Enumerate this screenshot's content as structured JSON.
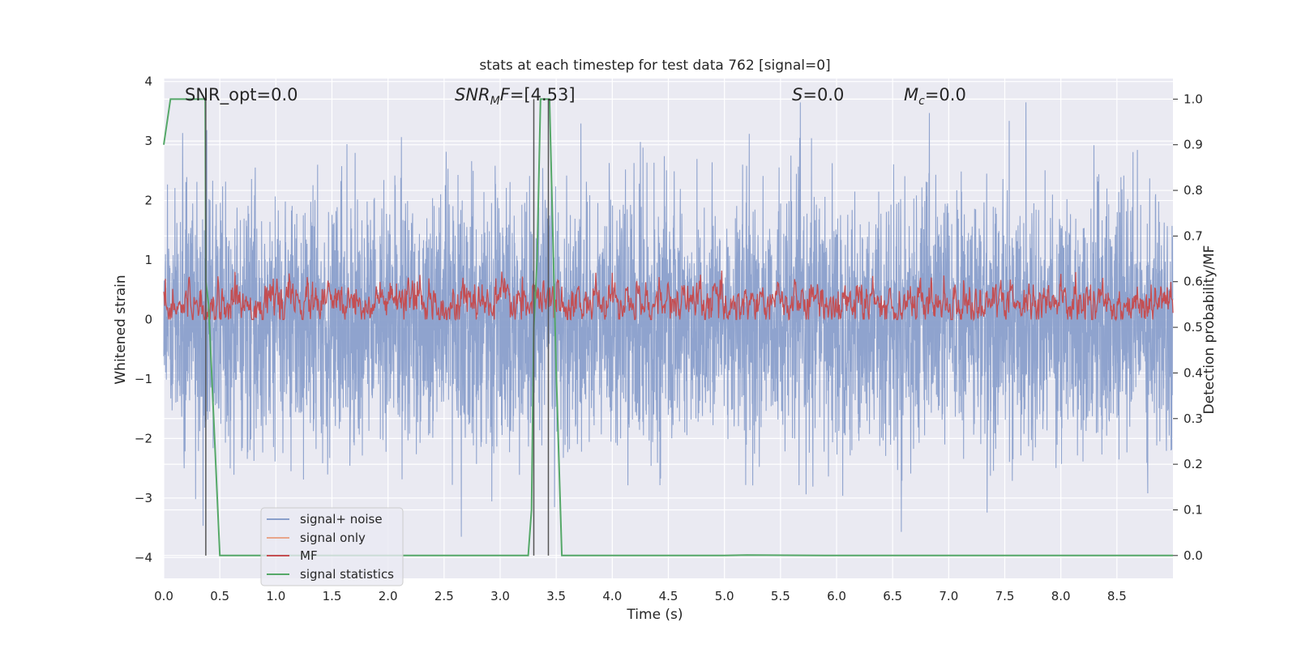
{
  "chart_data": {
    "type": "line",
    "title": "stats at each timestep for test data 762 [signal=0]",
    "xlabel": "Time (s)",
    "ylabel_left": "Whitened strain",
    "ylabel_right": "Detection probability/MF",
    "xlim": [
      0.0,
      9.0
    ],
    "ylim_left": [
      -4.35,
      4.05
    ],
    "ylim_right": [
      -0.05,
      1.045
    ],
    "xticks": [
      0.0,
      0.5,
      1.0,
      1.5,
      2.0,
      2.5,
      3.0,
      3.5,
      4.0,
      4.5,
      5.0,
      5.5,
      6.0,
      6.5,
      7.0,
      7.5,
      8.0,
      8.5
    ],
    "xtick_labels": [
      "0.0",
      "0.5",
      "1.0",
      "1.5",
      "2.0",
      "2.5",
      "3.0",
      "3.5",
      "4.0",
      "4.5",
      "5.0",
      "5.5",
      "6.0",
      "6.5",
      "7.0",
      "7.5",
      "8.0",
      "8.5"
    ],
    "yticks_left": [
      4,
      3,
      2,
      1,
      0,
      -1,
      -2,
      -3,
      -4
    ],
    "ytick_labels_left": [
      "4",
      "3",
      "2",
      "1",
      "0",
      "−1",
      "−2",
      "−3",
      "−4"
    ],
    "yticks_right": [
      1.0,
      0.9,
      0.8,
      0.7,
      0.6,
      0.5,
      0.4,
      0.3,
      0.2,
      0.1,
      0.0
    ],
    "ytick_labels_right": [
      "1.0",
      "0.9",
      "0.8",
      "0.7",
      "0.6",
      "0.5",
      "0.4",
      "0.3",
      "0.2",
      "0.1",
      "0.0"
    ],
    "grid": true,
    "legend_position": "lower-left",
    "annotations": {
      "snr_opt": "SNR_opt=0.0",
      "snr_mf_label": "SNR",
      "snr_mf_sub": "M",
      "snr_mf_tail": "F",
      "snr_mf_value": "=[4.53]",
      "s_label": "S",
      "s_value": "=0.0",
      "mc_label": "M",
      "mc_sub": "c",
      "mc_value": "=0.0"
    },
    "vertical_lines_x": [
      0.375,
      3.3,
      3.43
    ],
    "series": [
      {
        "name": "signal+ noise",
        "axis": "left",
        "color": "#8a9fcb",
        "description_of_values": "whitened noise, dense samples roughly within ±2, peaks to ±3.6",
        "amplitude_max": 3.65
      },
      {
        "name": "signal only",
        "axis": "left",
        "color": "#e8a58a",
        "values": []
      },
      {
        "name": "MF",
        "axis": "left",
        "color": "#c44e52",
        "y_range": [
          0.0,
          0.85
        ]
      },
      {
        "name": "signal statistics",
        "axis": "right",
        "color": "#55a868",
        "x": [
          0.0,
          0.06,
          0.37,
          0.375,
          0.4,
          0.5,
          1.0,
          2.0,
          3.0,
          3.25,
          3.28,
          3.3,
          3.33,
          3.36,
          3.39,
          3.44,
          3.5,
          3.55,
          4.0,
          5.0,
          5.2,
          6.0,
          7.0,
          8.0,
          9.0
        ],
        "y": [
          0.9,
          1.0,
          1.0,
          0.6,
          0.55,
          0.0,
          0.0,
          0.0,
          0.0,
          0.0,
          0.1,
          0.5,
          0.65,
          1.0,
          1.0,
          1.0,
          0.4,
          0.0,
          0.0,
          0.0,
          0.001,
          0.0,
          0.0,
          0.0,
          0.0
        ]
      }
    ]
  }
}
